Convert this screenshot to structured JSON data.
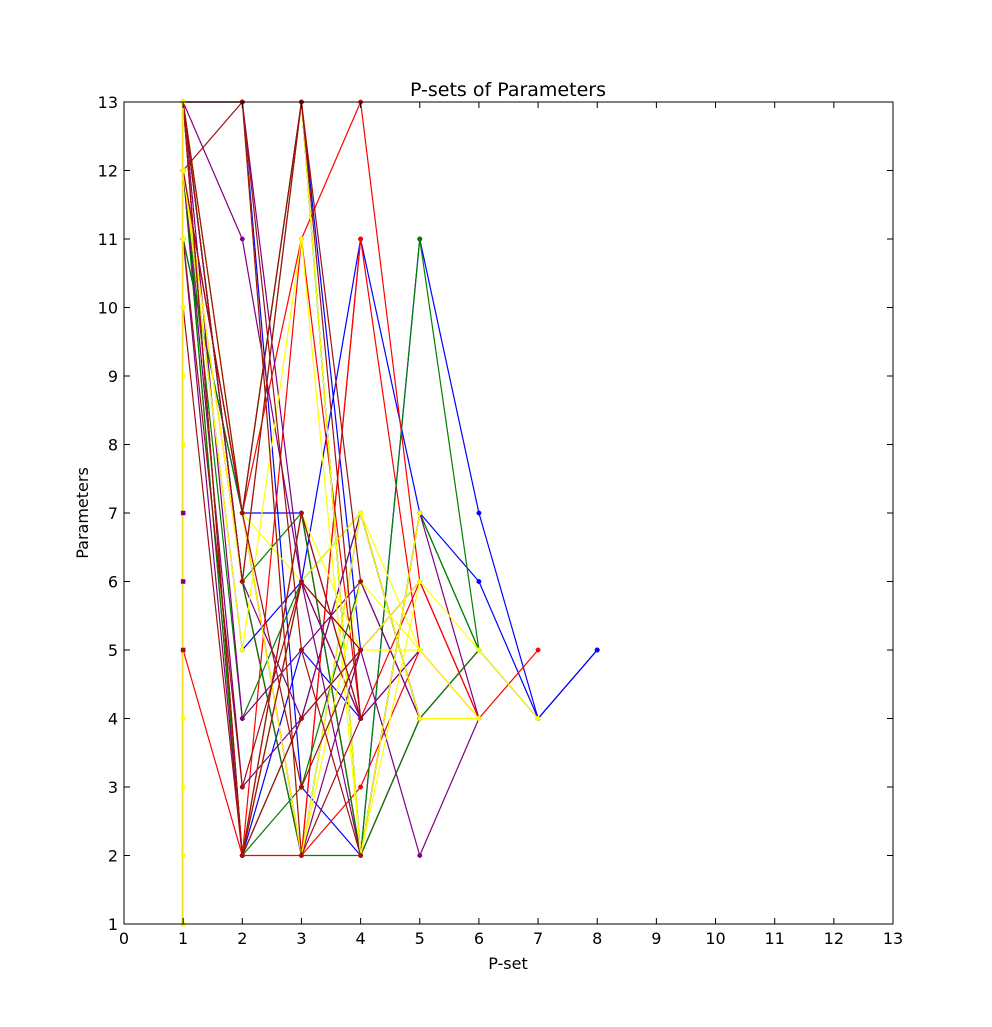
{
  "chart_data": {
    "type": "line",
    "title": "P-sets of Parameters",
    "xlabel": "P-set",
    "ylabel": "Parameters",
    "xlim": [
      0,
      13
    ],
    "ylim": [
      1,
      13
    ],
    "x_ticks": [
      "0",
      "1",
      "2",
      "3",
      "4",
      "5",
      "6",
      "7",
      "8",
      "9",
      "10",
      "11",
      "12",
      "13"
    ],
    "y_ticks": [
      "1",
      "2",
      "3",
      "4",
      "5",
      "6",
      "7",
      "8",
      "9",
      "10",
      "11",
      "12",
      "13"
    ],
    "grid": false,
    "legend": "none",
    "colors": {
      "blue": "#0000ff",
      "green": "#008000",
      "red": "#ff0000",
      "purple": "#800080",
      "yellow": "#ffff00",
      "darkred": "#a01010"
    },
    "series": [
      {
        "color": "blue",
        "points": [
          [
            1,
            13
          ],
          [
            2,
            6
          ],
          [
            3,
            2
          ],
          [
            4,
            7
          ],
          [
            5,
            4
          ],
          [
            6,
            5
          ],
          [
            7,
            4
          ],
          [
            8,
            5
          ]
        ]
      },
      {
        "color": "blue",
        "points": [
          [
            1,
            12
          ],
          [
            2,
            5
          ],
          [
            3,
            6
          ],
          [
            4,
            11
          ],
          [
            5,
            7
          ],
          [
            6,
            6
          ],
          [
            7,
            4
          ],
          [
            8,
            5
          ]
        ]
      },
      {
        "color": "blue",
        "points": [
          [
            1,
            13
          ],
          [
            2,
            13
          ],
          [
            3,
            3
          ],
          [
            4,
            2
          ],
          [
            5,
            11
          ],
          [
            6,
            7
          ],
          [
            7,
            4
          ]
        ]
      },
      {
        "color": "blue",
        "points": [
          [
            1,
            13
          ],
          [
            2,
            6
          ],
          [
            3,
            13
          ],
          [
            4,
            5
          ],
          [
            5,
            6
          ]
        ]
      },
      {
        "color": "blue",
        "points": [
          [
            1,
            11
          ],
          [
            2,
            7
          ],
          [
            3,
            7
          ],
          [
            4,
            2
          ],
          [
            5,
            4
          ]
        ]
      },
      {
        "color": "blue",
        "points": [
          [
            1,
            13
          ],
          [
            2,
            2
          ],
          [
            3,
            5
          ],
          [
            4,
            4
          ]
        ]
      },
      {
        "color": "red",
        "points": [
          [
            1,
            13
          ],
          [
            2,
            7
          ],
          [
            3,
            11
          ],
          [
            4,
            4
          ],
          [
            5,
            6
          ],
          [
            6,
            4
          ],
          [
            7,
            5
          ]
        ]
      },
      {
        "color": "red",
        "points": [
          [
            1,
            13
          ],
          [
            2,
            2
          ],
          [
            3,
            11
          ],
          [
            4,
            13
          ],
          [
            5,
            6
          ],
          [
            6,
            4
          ]
        ]
      },
      {
        "color": "red",
        "points": [
          [
            1,
            12
          ],
          [
            2,
            6
          ],
          [
            3,
            2
          ],
          [
            4,
            11
          ],
          [
            5,
            5
          ],
          [
            6,
            4
          ]
        ]
      },
      {
        "color": "red",
        "points": [
          [
            1,
            13
          ],
          [
            2,
            2
          ],
          [
            3,
            7
          ],
          [
            4,
            2
          ],
          [
            5,
            4
          ],
          [
            6,
            5
          ]
        ]
      },
      {
        "color": "red",
        "points": [
          [
            1,
            12
          ],
          [
            2,
            7
          ],
          [
            3,
            2
          ],
          [
            4,
            3
          ],
          [
            5,
            5
          ]
        ]
      },
      {
        "color": "red",
        "points": [
          [
            1,
            5
          ],
          [
            2,
            2
          ],
          [
            3,
            6
          ],
          [
            4,
            4
          ]
        ]
      },
      {
        "color": "red",
        "points": [
          [
            1,
            13
          ],
          [
            2,
            2
          ],
          [
            3,
            2
          ],
          [
            4,
            11
          ]
        ]
      },
      {
        "color": "green",
        "points": [
          [
            1,
            13
          ],
          [
            2,
            6
          ],
          [
            3,
            7
          ],
          [
            4,
            2
          ],
          [
            5,
            11
          ],
          [
            6,
            5
          ]
        ]
      },
      {
        "color": "green",
        "points": [
          [
            1,
            12
          ],
          [
            2,
            2
          ],
          [
            3,
            6
          ],
          [
            4,
            7
          ],
          [
            5,
            4
          ],
          [
            6,
            5
          ]
        ]
      },
      {
        "color": "green",
        "points": [
          [
            1,
            11
          ],
          [
            2,
            7
          ],
          [
            3,
            13
          ],
          [
            4,
            2
          ],
          [
            5,
            7
          ],
          [
            6,
            5
          ]
        ]
      },
      {
        "color": "green",
        "points": [
          [
            1,
            13
          ],
          [
            2,
            2
          ],
          [
            3,
            3
          ],
          [
            4,
            6
          ],
          [
            5,
            4
          ]
        ]
      },
      {
        "color": "green",
        "points": [
          [
            1,
            13
          ],
          [
            2,
            6
          ],
          [
            3,
            2
          ],
          [
            4,
            2
          ],
          [
            5,
            7
          ],
          [
            6,
            5
          ]
        ]
      },
      {
        "color": "green",
        "points": [
          [
            1,
            12
          ],
          [
            2,
            4
          ],
          [
            3,
            6
          ],
          [
            4,
            7
          ],
          [
            5,
            4
          ]
        ]
      },
      {
        "color": "green",
        "points": [
          [
            1,
            13
          ],
          [
            2,
            7
          ],
          [
            3,
            13
          ],
          [
            4,
            2
          ],
          [
            5,
            4
          ]
        ]
      },
      {
        "color": "green",
        "points": [
          [
            1,
            12
          ],
          [
            2,
            2
          ],
          [
            3,
            4
          ],
          [
            4,
            7
          ]
        ]
      },
      {
        "color": "purple",
        "points": [
          [
            1,
            13
          ],
          [
            2,
            6
          ],
          [
            3,
            4
          ],
          [
            4,
            5
          ],
          [
            5,
            2
          ],
          [
            6,
            4
          ]
        ]
      },
      {
        "color": "purple",
        "points": [
          [
            1,
            13
          ],
          [
            2,
            11
          ],
          [
            3,
            6
          ],
          [
            4,
            4
          ],
          [
            5,
            5
          ]
        ]
      },
      {
        "color": "purple",
        "points": [
          [
            1,
            12
          ],
          [
            2,
            3
          ],
          [
            3,
            4
          ],
          [
            4,
            7
          ],
          [
            5,
            4
          ]
        ]
      },
      {
        "color": "purple",
        "points": [
          [
            1,
            13
          ],
          [
            2,
            13
          ],
          [
            3,
            6
          ],
          [
            4,
            2
          ],
          [
            5,
            7
          ],
          [
            6,
            4
          ]
        ]
      },
      {
        "color": "purple",
        "points": [
          [
            1,
            12
          ],
          [
            2,
            7
          ],
          [
            3,
            2
          ],
          [
            4,
            5
          ],
          [
            5,
            6
          ]
        ]
      },
      {
        "color": "purple",
        "points": [
          [
            1,
            13
          ],
          [
            2,
            4
          ],
          [
            3,
            5
          ],
          [
            4,
            6
          ],
          [
            5,
            4
          ]
        ]
      },
      {
        "color": "purple",
        "points": [
          [
            1,
            11
          ],
          [
            2,
            2
          ],
          [
            3,
            7
          ],
          [
            4,
            4
          ],
          [
            5,
            5
          ]
        ]
      },
      {
        "color": "yellow",
        "points": [
          [
            1,
            13
          ],
          [
            2,
            7
          ],
          [
            3,
            6
          ],
          [
            4,
            5
          ],
          [
            5,
            5
          ],
          [
            6,
            4
          ]
        ]
      },
      {
        "color": "yellow",
        "points": [
          [
            1,
            13
          ],
          [
            2,
            2
          ],
          [
            3,
            7
          ],
          [
            4,
            5
          ],
          [
            5,
            6
          ],
          [
            6,
            5
          ],
          [
            7,
            4
          ]
        ]
      },
      {
        "color": "yellow",
        "points": [
          [
            1,
            12
          ],
          [
            2,
            5
          ],
          [
            3,
            11
          ],
          [
            4,
            2
          ],
          [
            5,
            6
          ]
        ]
      },
      {
        "color": "yellow",
        "points": [
          [
            1,
            13
          ],
          [
            2,
            7
          ],
          [
            3,
            2
          ],
          [
            4,
            6
          ],
          [
            5,
            5
          ]
        ]
      },
      {
        "color": "yellow",
        "points": [
          [
            1,
            13
          ],
          [
            2,
            2
          ],
          [
            3,
            6
          ],
          [
            4,
            7
          ],
          [
            5,
            4
          ],
          [
            6,
            4
          ]
        ]
      },
      {
        "color": "yellow",
        "points": [
          [
            1,
            13
          ],
          [
            2,
            13
          ],
          [
            3,
            2
          ],
          [
            4,
            7
          ],
          [
            5,
            5
          ]
        ]
      },
      {
        "color": "yellow",
        "points": [
          [
            1,
            12
          ],
          [
            2,
            6
          ],
          [
            3,
            13
          ],
          [
            4,
            2
          ],
          [
            5,
            7
          ]
        ]
      },
      {
        "color": "darkred",
        "points": [
          [
            1,
            13
          ],
          [
            2,
            13
          ],
          [
            3,
            5
          ],
          [
            4,
            2
          ]
        ]
      },
      {
        "color": "darkred",
        "points": [
          [
            1,
            13
          ],
          [
            2,
            7
          ],
          [
            3,
            3
          ],
          [
            4,
            5
          ]
        ]
      },
      {
        "color": "darkred",
        "points": [
          [
            1,
            13
          ],
          [
            2,
            6
          ],
          [
            3,
            13
          ],
          [
            4,
            6
          ]
        ]
      },
      {
        "color": "darkred",
        "points": [
          [
            1,
            13
          ],
          [
            2,
            2
          ],
          [
            3,
            7
          ],
          [
            4,
            4
          ]
        ]
      },
      {
        "color": "darkred",
        "points": [
          [
            1,
            12
          ],
          [
            2,
            13
          ],
          [
            3,
            2
          ],
          [
            4,
            4
          ]
        ]
      },
      {
        "color": "darkred",
        "points": [
          [
            1,
            11
          ],
          [
            2,
            3
          ],
          [
            3,
            6
          ],
          [
            4,
            5
          ]
        ]
      },
      {
        "color": "darkred",
        "points": [
          [
            1,
            13
          ],
          [
            2,
            2
          ],
          [
            3,
            4
          ],
          [
            4,
            5
          ]
        ]
      },
      {
        "color": "darkred",
        "points": [
          [
            1,
            12
          ],
          [
            2,
            7
          ],
          [
            3,
            13
          ],
          [
            4,
            4
          ]
        ]
      },
      {
        "color": "darkred",
        "points": [
          [
            1,
            10
          ],
          [
            2,
            2
          ],
          [
            3,
            6
          ],
          [
            4,
            5
          ]
        ]
      }
    ],
    "extra_points": [
      {
        "color": "yellow",
        "x": 1,
        "y": 1
      },
      {
        "color": "yellow",
        "x": 1,
        "y": 2
      },
      {
        "color": "yellow",
        "x": 1,
        "y": 3
      },
      {
        "color": "yellow",
        "x": 1,
        "y": 4
      },
      {
        "color": "darkred",
        "x": 1,
        "y": 5
      },
      {
        "color": "purple",
        "x": 1,
        "y": 6
      },
      {
        "color": "purple",
        "x": 1,
        "y": 7
      },
      {
        "color": "yellow",
        "x": 1,
        "y": 8
      },
      {
        "color": "yellow",
        "x": 1,
        "y": 9
      },
      {
        "color": "yellow",
        "x": 1,
        "y": 10
      },
      {
        "color": "yellow",
        "x": 1,
        "y": 11
      },
      {
        "color": "yellow",
        "x": 1,
        "y": 12
      },
      {
        "color": "yellow",
        "x": 1,
        "y": 13
      }
    ]
  }
}
